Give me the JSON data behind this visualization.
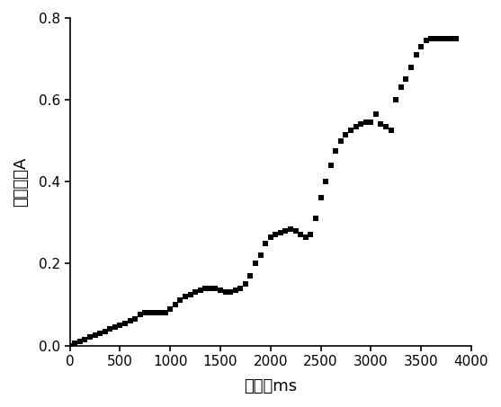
{
  "title": "",
  "xlabel": "时间，ms",
  "ylabel": "吸光度，A",
  "xlim": [
    0,
    4000
  ],
  "ylim": [
    0.0,
    0.8
  ],
  "xticks": [
    0,
    500,
    1000,
    1500,
    2000,
    2500,
    3000,
    3500,
    4000
  ],
  "yticks": [
    0.0,
    0.2,
    0.4,
    0.6,
    0.8
  ],
  "line_color": "#000000",
  "marker": "s",
  "markersize": 4,
  "linewidth": 0,
  "background_color": "#ffffff",
  "x_data": [
    0,
    50,
    100,
    150,
    200,
    250,
    300,
    350,
    400,
    450,
    500,
    550,
    600,
    650,
    700,
    750,
    800,
    850,
    900,
    950,
    1000,
    1050,
    1100,
    1150,
    1200,
    1250,
    1300,
    1350,
    1400,
    1450,
    1500,
    1550,
    1600,
    1650,
    1700,
    1750,
    1800,
    1850,
    1900,
    1950,
    2000,
    2050,
    2100,
    2150,
    2200,
    2250,
    2300,
    2350,
    2400,
    2450,
    2500,
    2550,
    2600,
    2650,
    2700,
    2750,
    2800,
    2850,
    2900,
    2950,
    3000,
    3050,
    3100,
    3150,
    3200,
    3250,
    3300,
    3350,
    3400,
    3450,
    3500,
    3550,
    3600,
    3650,
    3700,
    3750,
    3800,
    3850
  ],
  "y_data": [
    0.0,
    0.005,
    0.01,
    0.015,
    0.02,
    0.025,
    0.03,
    0.035,
    0.04,
    0.045,
    0.05,
    0.055,
    0.06,
    0.065,
    0.075,
    0.08,
    0.08,
    0.08,
    0.08,
    0.08,
    0.09,
    0.1,
    0.11,
    0.12,
    0.125,
    0.13,
    0.135,
    0.14,
    0.14,
    0.14,
    0.135,
    0.13,
    0.13,
    0.135,
    0.14,
    0.15,
    0.17,
    0.2,
    0.22,
    0.25,
    0.265,
    0.27,
    0.275,
    0.28,
    0.285,
    0.28,
    0.27,
    0.265,
    0.27,
    0.31,
    0.36,
    0.4,
    0.44,
    0.475,
    0.5,
    0.515,
    0.525,
    0.535,
    0.54,
    0.545,
    0.545,
    0.565,
    0.54,
    0.535,
    0.525,
    0.6,
    0.63,
    0.65,
    0.68,
    0.71,
    0.73,
    0.745,
    0.75,
    0.75,
    0.75,
    0.75,
    0.75,
    0.75
  ]
}
